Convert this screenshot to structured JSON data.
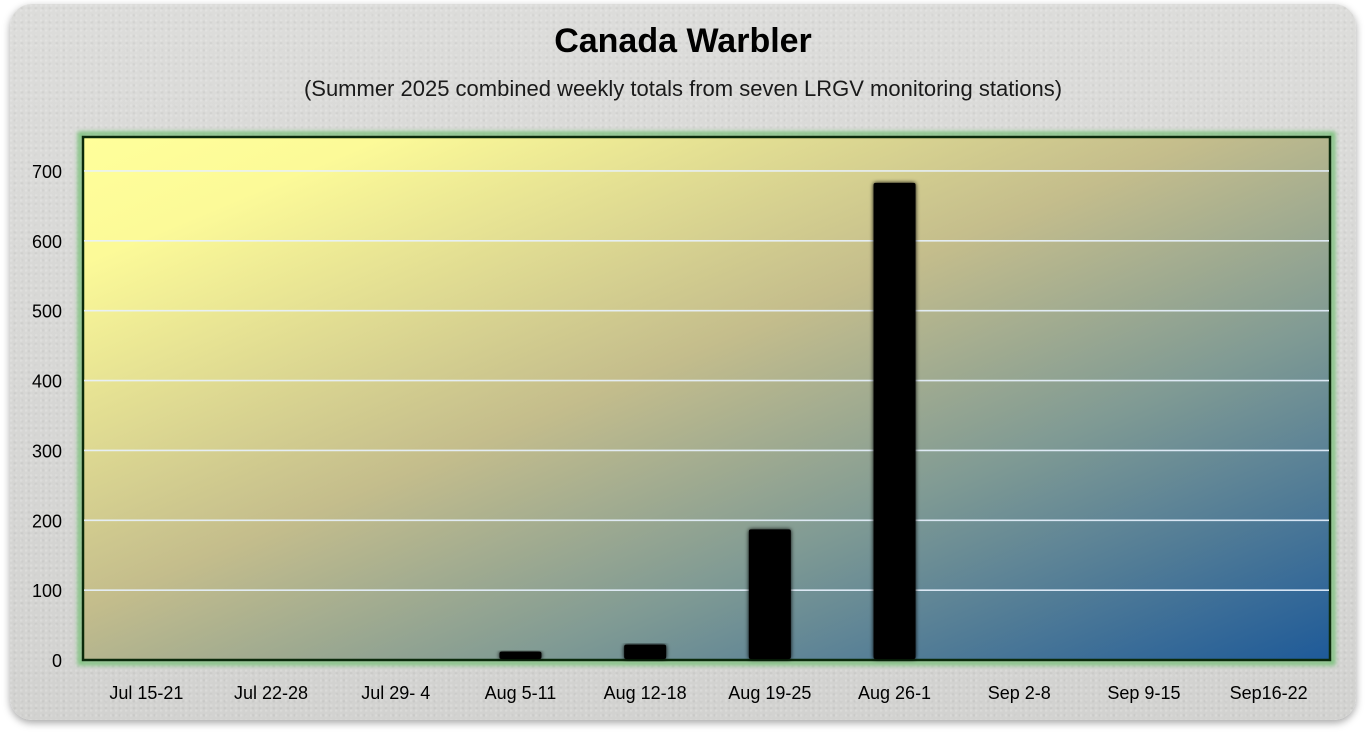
{
  "title": "Canada Warbler",
  "subtitle": "(Summer 2025 combined weekly totals from seven LRGV monitoring stations)",
  "colors": {
    "plot_gradient_start": "#ffff9a",
    "plot_gradient_mid": "#b9b48a",
    "plot_gradient_end": "#1e5a99",
    "plot_border": "#0b2a0b",
    "plot_glow": "#7fc27f",
    "bar": "#000000",
    "gridline": "#e8f2ff"
  },
  "chart_data": {
    "type": "bar",
    "categories": [
      "Jul 15-21",
      "Jul 22-28",
      "Jul 29- 4",
      "Aug 5-11",
      "Aug 12-18",
      "Aug 19-25",
      "Aug 26-1",
      "Sep 2-8",
      "Sep 9-15",
      "Sep16-22"
    ],
    "values": [
      0,
      0,
      0,
      12,
      22,
      187,
      683,
      0,
      0,
      0
    ],
    "title": "Canada Warbler",
    "subtitle": "(Summer 2025 combined weekly totals from seven LRGV monitoring stations)",
    "xlabel": "",
    "ylabel": "",
    "ylim": [
      0,
      750
    ],
    "yticks": [
      0,
      100,
      200,
      300,
      400,
      500,
      600,
      700
    ],
    "grid": true,
    "legend": "none"
  }
}
